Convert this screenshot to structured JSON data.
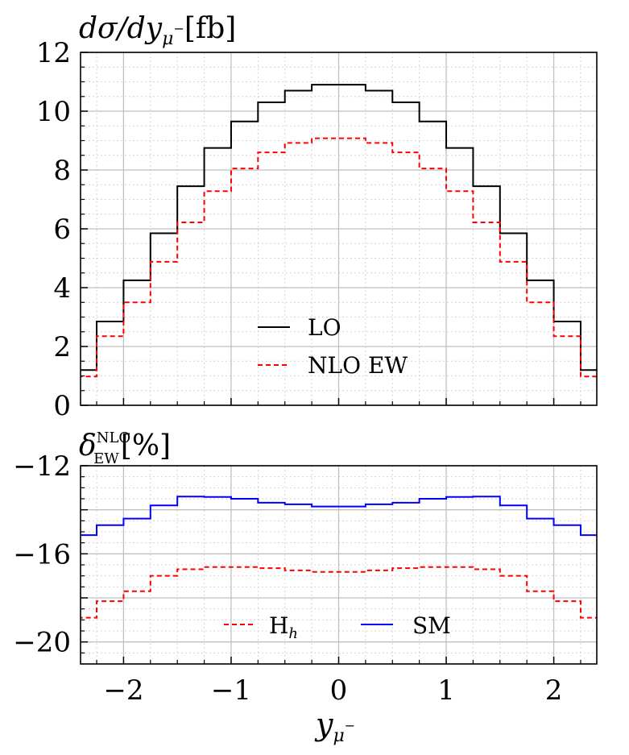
{
  "chart_data": [
    {
      "type": "line",
      "step": true,
      "title": "",
      "ylabel": {
        "main": "dσ/dy",
        "sub": "μ",
        "sup": "−",
        "unit": "[fb]"
      },
      "xlabel": "",
      "xlim": [
        -2.4,
        2.4
      ],
      "ylim": [
        0,
        12
      ],
      "grid": true,
      "yticks": [
        0,
        2,
        4,
        6,
        8,
        10,
        12
      ],
      "ytick_labels": [
        "0",
        "2",
        "4",
        "6",
        "8",
        "10",
        "12"
      ],
      "bin_edges": [
        -2.5,
        -2.25,
        -2.0,
        -1.75,
        -1.5,
        -1.25,
        -1.0,
        -0.75,
        -0.5,
        -0.25,
        0.0,
        0.25,
        0.5,
        0.75,
        1.0,
        1.25,
        1.5,
        1.75,
        2.0,
        2.25,
        2.5
      ],
      "legend_position": "bottom-center",
      "series": [
        {
          "name": "LO",
          "color": "#000000",
          "style": "solid",
          "values": [
            1.2,
            2.85,
            4.25,
            5.85,
            7.45,
            8.75,
            9.65,
            10.3,
            10.7,
            10.9,
            10.9,
            10.7,
            10.3,
            9.65,
            8.75,
            7.45,
            5.85,
            4.25,
            2.85,
            1.2
          ]
        },
        {
          "name": "NLO EW",
          "color": "#ff0000",
          "style": "dashed",
          "values": [
            0.98,
            2.35,
            3.5,
            4.88,
            6.22,
            7.28,
            8.05,
            8.6,
            8.92,
            9.08,
            9.08,
            8.92,
            8.6,
            8.05,
            7.28,
            6.22,
            4.88,
            3.5,
            2.35,
            0.98
          ]
        }
      ]
    },
    {
      "type": "line",
      "step": true,
      "title": "",
      "ylabel": {
        "main": "δ",
        "sub": "EW",
        "sup": "NLO",
        "unit": "[%]"
      },
      "xlabel": {
        "main": "y",
        "sub": "μ",
        "sup": "−"
      },
      "xlim": [
        -2.4,
        2.4
      ],
      "ylim": [
        -21,
        -12
      ],
      "grid": true,
      "yticks": [
        -12,
        -16,
        -20
      ],
      "ytick_labels": [
        "−12",
        "−16",
        "−20"
      ],
      "xticks": [
        -2,
        -1,
        0,
        1,
        2
      ],
      "xtick_labels": [
        "−2",
        "−1",
        "0",
        "1",
        "2"
      ],
      "bin_edges": [
        -2.5,
        -2.25,
        -2.0,
        -1.75,
        -1.5,
        -1.25,
        -1.0,
        -0.75,
        -0.5,
        -0.25,
        0.0,
        0.25,
        0.5,
        0.75,
        1.0,
        1.25,
        1.5,
        1.75,
        2.0,
        2.25,
        2.5
      ],
      "legend_position": "bottom-center",
      "series": [
        {
          "name": "H",
          "name_sub": "h",
          "color": "#ff0000",
          "style": "dashed",
          "values": [
            -18.9,
            -18.15,
            -17.7,
            -17.0,
            -16.7,
            -16.6,
            -16.6,
            -16.65,
            -16.75,
            -16.82,
            -16.82,
            -16.75,
            -16.65,
            -16.6,
            -16.6,
            -16.7,
            -17.0,
            -17.7,
            -18.15,
            -18.9
          ]
        },
        {
          "name": "SM",
          "color": "#0000ff",
          "style": "solid",
          "values": [
            -15.15,
            -14.7,
            -14.4,
            -13.8,
            -13.4,
            -13.42,
            -13.5,
            -13.68,
            -13.75,
            -13.85,
            -13.85,
            -13.75,
            -13.68,
            -13.5,
            -13.42,
            -13.4,
            -13.8,
            -14.4,
            -14.7,
            -15.15
          ]
        }
      ]
    }
  ]
}
